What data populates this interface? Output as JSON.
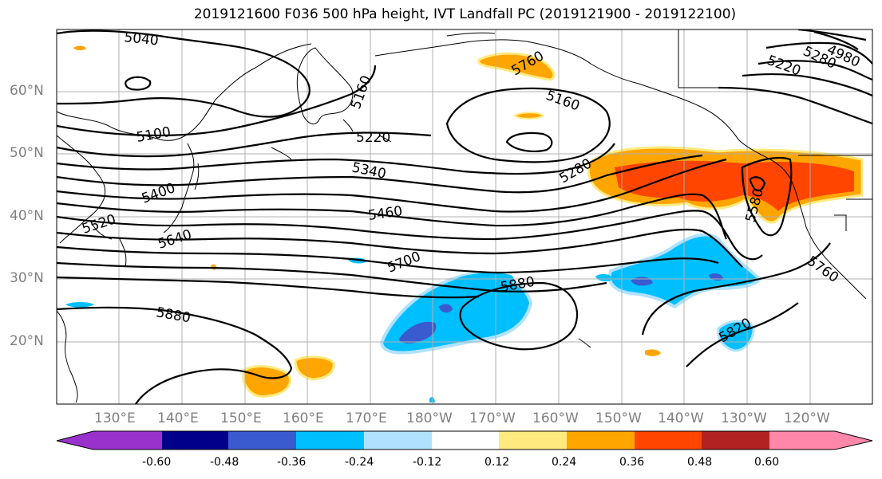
{
  "title": "2019121600 F036 500 hPa height, IVT Landfall PC (2019121900 - 2019122100)",
  "lat_labels": [
    "60°N",
    "50°N",
    "40°N",
    "30°N",
    "20°N"
  ],
  "lon_labels": [
    "130°E",
    "140°E",
    "150°E",
    "160°E",
    "170°E",
    "180°W",
    "170°W",
    "160°W",
    "150°W",
    "140°W",
    "130°W",
    "120°W"
  ],
  "contour_labels": [
    "5040",
    "5100",
    "5160",
    "5160",
    "5220",
    "5280",
    "5340",
    "5400",
    "5460",
    "5520",
    "5580",
    "5640",
    "5700",
    "5760",
    "5760",
    "5820",
    "5880",
    "5880",
    "5220",
    "5280",
    "4980"
  ],
  "colorbar": {
    "colors": [
      "#9932CC",
      "#00008B",
      "#3A5BCF",
      "#00BFFF",
      "#B0E2FF",
      "#FFFFFF",
      "#FFEA80",
      "#FFA500",
      "#FF4500",
      "#B22222",
      "#FF88AA"
    ],
    "tick_labels": [
      "-0.60",
      "-0.48",
      "-0.36",
      "-0.24",
      "-0.12",
      "0.12",
      "0.24",
      "0.36",
      "0.48",
      "0.60"
    ]
  },
  "shading_colors": {
    "light_blue": "#B0E2FF",
    "mid_blue": "#00BFFF",
    "dark_blue": "#3A5BCF",
    "yellow": "#FFEA80",
    "orange": "#FFA500",
    "red_orange": "#FF4500"
  }
}
